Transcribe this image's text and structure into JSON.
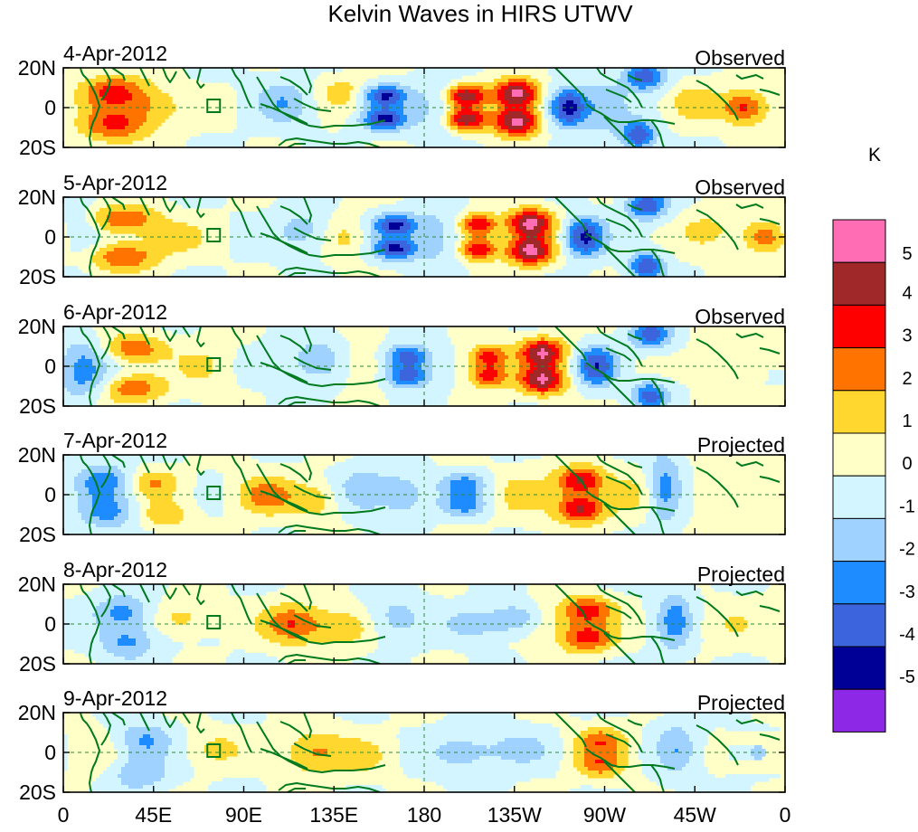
{
  "chart_data": {
    "type": "heatmap",
    "title": "Kelvin Waves in HIRS UTWV",
    "units": "K",
    "x_ticks": [
      "0",
      "45E",
      "90E",
      "135E",
      "180",
      "135W",
      "90W",
      "45W",
      "0"
    ],
    "x_range_deg": [
      0,
      360
    ],
    "y_ticks": [
      "20N",
      "0",
      "20S"
    ],
    "y_range_deg": [
      -20,
      20
    ],
    "colorbar": {
      "labels": [
        "5",
        "4",
        "3",
        "2",
        "1",
        "0",
        "-1",
        "-2",
        "-3",
        "-4",
        "-5"
      ],
      "levels": [
        5,
        4,
        3,
        2,
        1,
        0,
        -1,
        -2,
        -3,
        -4,
        -5
      ],
      "colors": [
        "#ff6eb4",
        "#a02828",
        "#ff0000",
        "#ff7300",
        "#ffd72f",
        "#ffffc8",
        "#d2f5ff",
        "#a0d2ff",
        "#1e8cff",
        "#3c64dc",
        "#000096",
        "#8c28e6"
      ]
    },
    "panels": [
      {
        "date": "4-Apr-2012",
        "status": "Observed",
        "features": [
          {
            "lon": 25,
            "lat": 8,
            "amp": 3.2,
            "sx": 12,
            "sy": 6
          },
          {
            "lon": 25,
            "lat": -9,
            "amp": 3.0,
            "sx": 12,
            "sy": 6
          },
          {
            "lon": 45,
            "lat": 0,
            "amp": 1.6,
            "sx": 12,
            "sy": 7
          },
          {
            "lon": 110,
            "lat": 3,
            "amp": -1.8,
            "sx": 10,
            "sy": 8
          },
          {
            "lon": 140,
            "lat": 8,
            "amp": 1.4,
            "sx": 10,
            "sy": 6
          },
          {
            "lon": 160,
            "lat": 6,
            "amp": -4.2,
            "sx": 8,
            "sy": 4
          },
          {
            "lon": 160,
            "lat": -6,
            "amp": -4.2,
            "sx": 8,
            "sy": 4
          },
          {
            "lon": 185,
            "lat": 0,
            "amp": -1.2,
            "sx": 8,
            "sy": 12
          },
          {
            "lon": 201,
            "lat": 6,
            "amp": 4.6,
            "sx": 7,
            "sy": 4
          },
          {
            "lon": 201,
            "lat": -6,
            "amp": 4.6,
            "sx": 7,
            "sy": 4
          },
          {
            "lon": 226,
            "lat": 7,
            "amp": 5.5,
            "sx": 8,
            "sy": 5
          },
          {
            "lon": 226,
            "lat": -7,
            "amp": 5.5,
            "sx": 8,
            "sy": 5
          },
          {
            "lon": 252,
            "lat": 4,
            "amp": -3.2,
            "sx": 7,
            "sy": 5
          },
          {
            "lon": 252,
            "lat": -4,
            "amp": -3.2,
            "sx": 7,
            "sy": 5
          },
          {
            "lon": 270,
            "lat": 0,
            "amp": -1.6,
            "sx": 8,
            "sy": 10
          },
          {
            "lon": 290,
            "lat": 16,
            "amp": -4.0,
            "sx": 7,
            "sy": 5
          },
          {
            "lon": 287,
            "lat": -14,
            "amp": -4.0,
            "sx": 6,
            "sy": 5
          },
          {
            "lon": 315,
            "lat": 3,
            "amp": 1.4,
            "sx": 10,
            "sy": 7
          },
          {
            "lon": 340,
            "lat": 0,
            "amp": 3.3,
            "sx": 8,
            "sy": 6
          }
        ]
      },
      {
        "date": "5-Apr-2012",
        "status": "Observed",
        "features": [
          {
            "lon": 30,
            "lat": 9,
            "amp": 3.0,
            "sx": 12,
            "sy": 5
          },
          {
            "lon": 30,
            "lat": -10,
            "amp": 3.0,
            "sx": 12,
            "sy": 5
          },
          {
            "lon": 55,
            "lat": 0,
            "amp": 1.4,
            "sx": 12,
            "sy": 6
          },
          {
            "lon": 8,
            "lat": 2,
            "amp": -1.5,
            "sx": 8,
            "sy": 8
          },
          {
            "lon": 120,
            "lat": 3,
            "amp": -1.6,
            "sx": 10,
            "sy": 8
          },
          {
            "lon": 140,
            "lat": 0,
            "amp": 1.3,
            "sx": 8,
            "sy": 8
          },
          {
            "lon": 166,
            "lat": 6,
            "amp": -4.2,
            "sx": 8,
            "sy": 4
          },
          {
            "lon": 166,
            "lat": -6,
            "amp": -4.2,
            "sx": 8,
            "sy": 4
          },
          {
            "lon": 188,
            "lat": 0,
            "amp": -1.5,
            "sx": 8,
            "sy": 12
          },
          {
            "lon": 207,
            "lat": 6,
            "amp": 4.0,
            "sx": 7,
            "sy": 4
          },
          {
            "lon": 207,
            "lat": -6,
            "amp": 4.0,
            "sx": 7,
            "sy": 4
          },
          {
            "lon": 233,
            "lat": 7,
            "amp": 5.3,
            "sx": 8,
            "sy": 5
          },
          {
            "lon": 233,
            "lat": -7,
            "amp": 5.3,
            "sx": 8,
            "sy": 5
          },
          {
            "lon": 260,
            "lat": 4,
            "amp": -3.0,
            "sx": 7,
            "sy": 5
          },
          {
            "lon": 260,
            "lat": -4,
            "amp": -3.0,
            "sx": 7,
            "sy": 5
          },
          {
            "lon": 291,
            "lat": 16,
            "amp": -4.0,
            "sx": 7,
            "sy": 5
          },
          {
            "lon": 291,
            "lat": -15,
            "amp": -4.0,
            "sx": 6,
            "sy": 5
          },
          {
            "lon": 322,
            "lat": 3,
            "amp": 1.4,
            "sx": 10,
            "sy": 7
          },
          {
            "lon": 350,
            "lat": 0,
            "amp": 2.6,
            "sx": 8,
            "sy": 6
          }
        ]
      },
      {
        "date": "6-Apr-2012",
        "status": "Observed",
        "features": [
          {
            "lon": 35,
            "lat": 9,
            "amp": 2.8,
            "sx": 11,
            "sy": 5
          },
          {
            "lon": 35,
            "lat": -11,
            "amp": 2.8,
            "sx": 11,
            "sy": 5
          },
          {
            "lon": 10,
            "lat": 4,
            "amp": -2.0,
            "sx": 9,
            "sy": 7
          },
          {
            "lon": 10,
            "lat": -8,
            "amp": -1.8,
            "sx": 9,
            "sy": 6
          },
          {
            "lon": 70,
            "lat": 0,
            "amp": 1.2,
            "sx": 10,
            "sy": 8
          },
          {
            "lon": 125,
            "lat": 3,
            "amp": -1.8,
            "sx": 10,
            "sy": 8
          },
          {
            "lon": 150,
            "lat": 0,
            "amp": 1.1,
            "sx": 8,
            "sy": 8
          },
          {
            "lon": 172,
            "lat": 5,
            "amp": -3.8,
            "sx": 8,
            "sy": 4
          },
          {
            "lon": 172,
            "lat": -5,
            "amp": -3.8,
            "sx": 8,
            "sy": 4
          },
          {
            "lon": 212,
            "lat": 5,
            "amp": 3.6,
            "sx": 7,
            "sy": 4
          },
          {
            "lon": 212,
            "lat": -5,
            "amp": 3.6,
            "sx": 7,
            "sy": 4
          },
          {
            "lon": 239,
            "lat": 7,
            "amp": 5.0,
            "sx": 8,
            "sy": 5
          },
          {
            "lon": 239,
            "lat": -7,
            "amp": 5.0,
            "sx": 8,
            "sy": 5
          },
          {
            "lon": 266,
            "lat": 4,
            "amp": -2.6,
            "sx": 7,
            "sy": 5
          },
          {
            "lon": 266,
            "lat": -4,
            "amp": -2.6,
            "sx": 7,
            "sy": 5
          },
          {
            "lon": 293,
            "lat": 16,
            "amp": -3.6,
            "sx": 7,
            "sy": 5
          },
          {
            "lon": 293,
            "lat": -15,
            "amp": -3.6,
            "sx": 6,
            "sy": 5
          },
          {
            "lon": 330,
            "lat": 3,
            "amp": 1.2,
            "sx": 10,
            "sy": 7
          }
        ]
      },
      {
        "date": "7-Apr-2012",
        "status": "Projected",
        "features": [
          {
            "lon": 20,
            "lat": 7,
            "amp": -2.6,
            "sx": 10,
            "sy": 6
          },
          {
            "lon": 22,
            "lat": -9,
            "amp": -2.4,
            "sx": 10,
            "sy": 6
          },
          {
            "lon": 45,
            "lat": 6,
            "amp": 2.0,
            "sx": 9,
            "sy": 5
          },
          {
            "lon": 50,
            "lat": -10,
            "amp": 1.8,
            "sx": 9,
            "sy": 5
          },
          {
            "lon": 100,
            "lat": 0,
            "amp": 2.4,
            "sx": 10,
            "sy": 7
          },
          {
            "lon": 125,
            "lat": -3,
            "amp": 1.6,
            "sx": 10,
            "sy": 7
          },
          {
            "lon": 150,
            "lat": 2,
            "amp": -1.8,
            "sx": 10,
            "sy": 8
          },
          {
            "lon": 170,
            "lat": 0,
            "amp": -1.6,
            "sx": 8,
            "sy": 8
          },
          {
            "lon": 200,
            "lat": 5,
            "amp": -2.6,
            "sx": 8,
            "sy": 4
          },
          {
            "lon": 200,
            "lat": -5,
            "amp": -2.6,
            "sx": 8,
            "sy": 4
          },
          {
            "lon": 228,
            "lat": 0,
            "amp": 1.2,
            "sx": 10,
            "sy": 9
          },
          {
            "lon": 258,
            "lat": 7,
            "amp": 4.3,
            "sx": 9,
            "sy": 5
          },
          {
            "lon": 258,
            "lat": -7,
            "amp": 4.3,
            "sx": 9,
            "sy": 5
          },
          {
            "lon": 285,
            "lat": 0,
            "amp": 1.0,
            "sx": 8,
            "sy": 9
          },
          {
            "lon": 300,
            "lat": 3,
            "amp": -2.6,
            "sx": 6,
            "sy": 12
          },
          {
            "lon": 325,
            "lat": 0,
            "amp": 0.8,
            "sx": 12,
            "sy": 8
          }
        ]
      },
      {
        "date": "8-Apr-2012",
        "status": "Projected",
        "features": [
          {
            "lon": 30,
            "lat": 6,
            "amp": -2.4,
            "sx": 10,
            "sy": 6
          },
          {
            "lon": 32,
            "lat": -9,
            "amp": -2.2,
            "sx": 10,
            "sy": 6
          },
          {
            "lon": 60,
            "lat": 3,
            "amp": 1.4,
            "sx": 11,
            "sy": 6
          },
          {
            "lon": 115,
            "lat": 0,
            "amp": 3.1,
            "sx": 11,
            "sy": 7
          },
          {
            "lon": 140,
            "lat": -2,
            "amp": 1.6,
            "sx": 10,
            "sy": 7
          },
          {
            "lon": 165,
            "lat": 3,
            "amp": -1.5,
            "sx": 10,
            "sy": 8
          },
          {
            "lon": 205,
            "lat": 0,
            "amp": -1.8,
            "sx": 10,
            "sy": 5
          },
          {
            "lon": 225,
            "lat": 3,
            "amp": -2.0,
            "sx": 8,
            "sy": 5
          },
          {
            "lon": 262,
            "lat": 7,
            "amp": 3.4,
            "sx": 9,
            "sy": 5
          },
          {
            "lon": 262,
            "lat": -7,
            "amp": 3.4,
            "sx": 9,
            "sy": 5
          },
          {
            "lon": 245,
            "lat": 0,
            "amp": 0.9,
            "sx": 10,
            "sy": 9
          },
          {
            "lon": 305,
            "lat": 2,
            "amp": -2.4,
            "sx": 6,
            "sy": 11
          },
          {
            "lon": 335,
            "lat": 0,
            "amp": 0.8,
            "sx": 12,
            "sy": 8
          }
        ]
      },
      {
        "date": "9-Apr-2012",
        "status": "Projected",
        "features": [
          {
            "lon": 40,
            "lat": 6,
            "amp": -2.2,
            "sx": 10,
            "sy": 6
          },
          {
            "lon": 38,
            "lat": -10,
            "amp": -2.0,
            "sx": 10,
            "sy": 6
          },
          {
            "lon": 15,
            "lat": 0,
            "amp": 0.9,
            "sx": 10,
            "sy": 8
          },
          {
            "lon": 75,
            "lat": 2,
            "amp": 1.2,
            "sx": 11,
            "sy": 6
          },
          {
            "lon": 125,
            "lat": 0,
            "amp": 2.2,
            "sx": 11,
            "sy": 8
          },
          {
            "lon": 150,
            "lat": -2,
            "amp": 1.2,
            "sx": 10,
            "sy": 7
          },
          {
            "lon": 200,
            "lat": 0,
            "amp": -1.6,
            "sx": 12,
            "sy": 7
          },
          {
            "lon": 228,
            "lat": 2,
            "amp": -1.4,
            "sx": 10,
            "sy": 6
          },
          {
            "lon": 268,
            "lat": 6,
            "amp": 2.6,
            "sx": 9,
            "sy": 5
          },
          {
            "lon": 268,
            "lat": -6,
            "amp": 2.6,
            "sx": 9,
            "sy": 5
          },
          {
            "lon": 306,
            "lat": 2,
            "amp": -1.8,
            "sx": 7,
            "sy": 10
          },
          {
            "lon": 345,
            "lat": 0,
            "amp": -1.0,
            "sx": 8,
            "sy": 6
          }
        ]
      }
    ]
  }
}
